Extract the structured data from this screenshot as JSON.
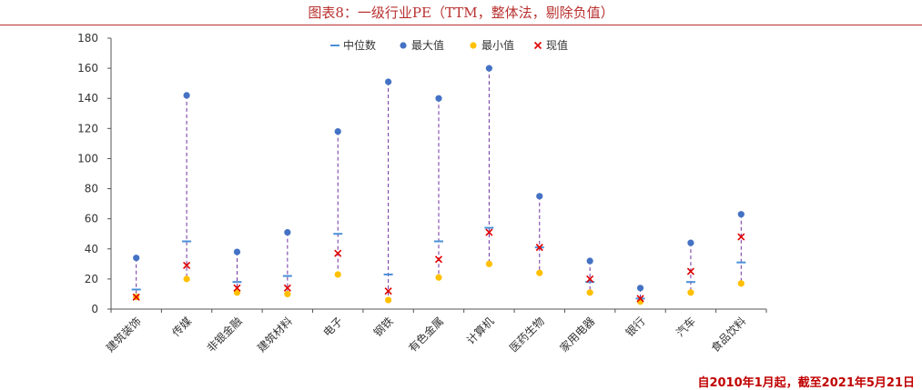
{
  "header": {
    "title": "图表8：一级行业PE（TTM，整体法，剔除负值）"
  },
  "footer": {
    "note": "自2010年1月起，截至2021年5月21日"
  },
  "colors": {
    "median": "#4a90d9",
    "max": "#4472c4",
    "min": "#ffc000",
    "current": "#e00000",
    "range_line": "#7030a0",
    "title": "#b8312f",
    "note": "#c00000"
  },
  "chart_data": {
    "type": "scatter",
    "categories": [
      "建筑装饰",
      "传媒",
      "非银金融",
      "建筑材料",
      "电子",
      "钢铁",
      "有色金属",
      "计算机",
      "医药生物",
      "家用电器",
      "银行",
      "汽车",
      "食品饮料"
    ],
    "series": [
      {
        "name": "中位数",
        "marker": "dash",
        "values": [
          13,
          45,
          18,
          22,
          50,
          23,
          45,
          54,
          41,
          18,
          7,
          18,
          31
        ]
      },
      {
        "name": "最大值",
        "marker": "circle",
        "values": [
          34,
          142,
          38,
          51,
          118,
          151,
          140,
          160,
          75,
          32,
          14,
          44,
          63
        ]
      },
      {
        "name": "最小值",
        "marker": "circle",
        "values": [
          8,
          20,
          11,
          10,
          23,
          6,
          21,
          30,
          24,
          11,
          5,
          11,
          17
        ]
      },
      {
        "name": "现值",
        "marker": "x",
        "values": [
          8,
          29,
          14,
          14,
          37,
          12,
          33,
          51,
          41,
          20,
          7,
          25,
          48
        ]
      }
    ],
    "ylim": [
      0,
      180
    ],
    "yticks": [
      0,
      20,
      40,
      60,
      80,
      100,
      120,
      140,
      160,
      180
    ],
    "legend_position": "top-center",
    "range_line_style": "dashed vertical from min to max",
    "grid": false
  }
}
